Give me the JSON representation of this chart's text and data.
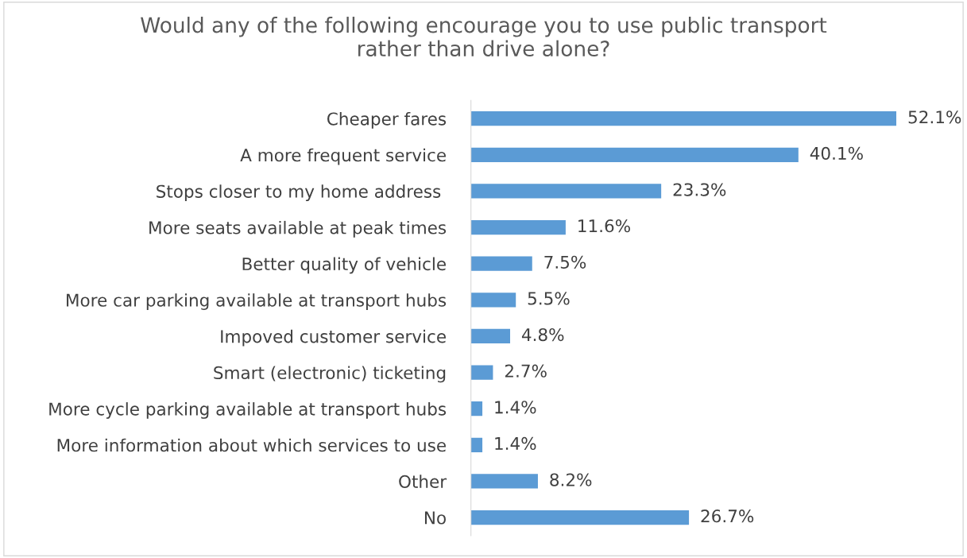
{
  "chart_data": {
    "type": "bar",
    "orientation": "horizontal",
    "title": "Would any of the following encourage you to use public transport\nrather than drive alone?",
    "categories": [
      "Cheaper fares",
      "A more frequent service",
      "Stops closer to my home address ",
      "More seats available at peak times",
      "Better quality of vehicle",
      "More car parking available at transport hubs",
      "Impoved customer service",
      "Smart (electronic) ticketing",
      "More cycle parking available at transport hubs",
      "More information about which services to use",
      "Other",
      "No"
    ],
    "values": [
      52.1,
      40.1,
      23.3,
      11.6,
      7.5,
      5.5,
      4.8,
      2.7,
      1.4,
      1.4,
      8.2,
      26.7
    ],
    "value_labels": [
      "52.1%",
      "40.1%",
      "23.3%",
      "11.6%",
      "7.5%",
      "5.5%",
      "4.8%",
      "2.7%",
      "1.4%",
      "1.4%",
      "8.2%",
      "26.7%"
    ],
    "color": "#5b9bd5",
    "grid": false,
    "legend": false
  }
}
